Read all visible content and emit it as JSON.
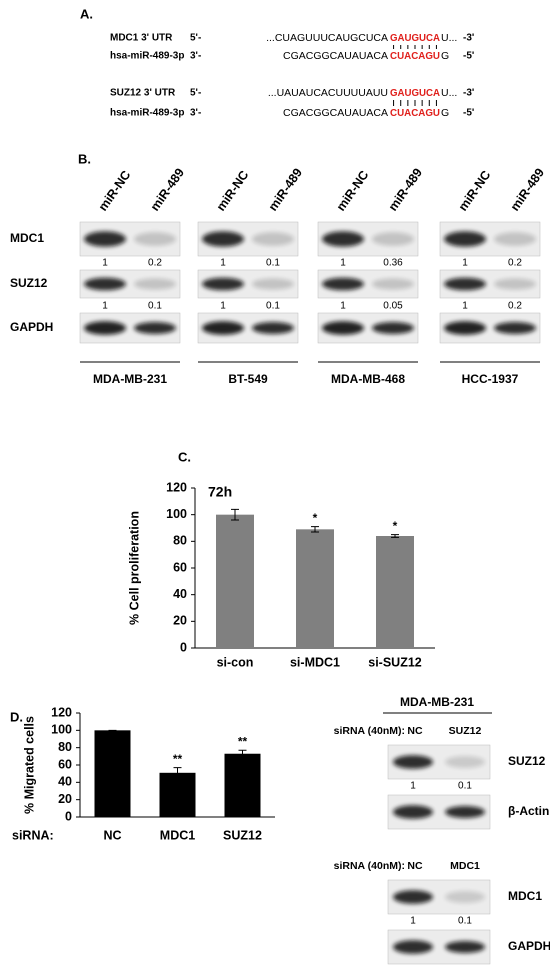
{
  "panel_a": {
    "label": "A.",
    "rows": [
      {
        "name": "MDC1  3' UTR",
        "end5": "5'-",
        "seq": "...CUAGUUUCAUGCUCA",
        "site": "GAUGUCA",
        "tail": "U...",
        "end3": "-3'"
      },
      {
        "name": "hsa-miR-489-3p",
        "end5": "3'-",
        "seq": "CGACGGCAUAUACA",
        "site": "CUACAGU",
        "tail": "G",
        "end3": "-5'"
      },
      {
        "name": "SUZ12 3' UTR",
        "end5": "5'-",
        "seq": "...UAUAUCACUUUUAUU",
        "site": "GAUGUCA",
        "tail": "U...",
        "end3": "-3'"
      },
      {
        "name": "hsa-miR-489-3p",
        "end5": "3'-",
        "seq": "CGACGGCAUAUACA",
        "site": "CUACAGU",
        "tail": "G",
        "end3": "-5'"
      }
    ]
  },
  "panel_b": {
    "label": "B.",
    "lanes": [
      "miR-NC",
      "miR-489"
    ],
    "proteins": [
      "MDC1",
      "SUZ12",
      "GAPDH"
    ],
    "cell_lines": [
      {
        "name": "MDA-MB-231",
        "quant": [
          [
            1,
            0.2
          ],
          [
            1,
            0.1
          ]
        ]
      },
      {
        "name": "BT-549",
        "quant": [
          [
            1,
            0.1
          ],
          [
            1,
            0.1
          ]
        ]
      },
      {
        "name": "MDA-MB-468",
        "quant": [
          [
            1,
            0.36
          ],
          [
            1,
            0.05
          ]
        ]
      },
      {
        "name": "HCC-1937",
        "quant": [
          [
            1,
            0.2
          ],
          [
            1,
            0.2
          ]
        ]
      }
    ]
  },
  "chart_data": [
    {
      "type": "bar",
      "label": "C.",
      "title": "72h",
      "y_label": "% Cell proliferation",
      "categories": [
        "si-con",
        "si-MDC1",
        "si-SUZ12"
      ],
      "values": [
        100,
        89,
        84
      ],
      "errors": [
        4,
        2,
        1
      ],
      "significance": [
        null,
        "*",
        "*"
      ],
      "color": "#808080",
      "ylim": [
        0,
        120
      ],
      "yticks": [
        0,
        20,
        40,
        60,
        80,
        100,
        120
      ]
    },
    {
      "type": "bar",
      "label": "D.",
      "x_label": "siRNA:",
      "y_label": "% Migrated cells",
      "categories": [
        "NC",
        "MDC1",
        "SUZ12"
      ],
      "values": [
        100,
        51,
        73
      ],
      "errors": [
        0,
        6,
        4
      ],
      "significance": [
        null,
        "**",
        "**"
      ],
      "color": "#000000",
      "ylim": [
        0,
        120
      ],
      "yticks": [
        0,
        20,
        40,
        60,
        80,
        100,
        120
      ]
    }
  ],
  "panel_d_blots": {
    "title": "MDA-MB-231",
    "groups": [
      {
        "condition": "siRNA (40nM):",
        "lanes": [
          "NC",
          "SUZ12"
        ],
        "rows": [
          {
            "protein": "SUZ12",
            "quant": [
              1,
              0.1
            ]
          },
          {
            "protein": "β-Actin"
          }
        ]
      },
      {
        "condition": "siRNA (40nM):",
        "lanes": [
          "NC",
          "MDC1"
        ],
        "rows": [
          {
            "protein": "MDC1",
            "quant": [
              1,
              0.1
            ]
          },
          {
            "protein": "GAPDH"
          }
        ]
      }
    ]
  }
}
